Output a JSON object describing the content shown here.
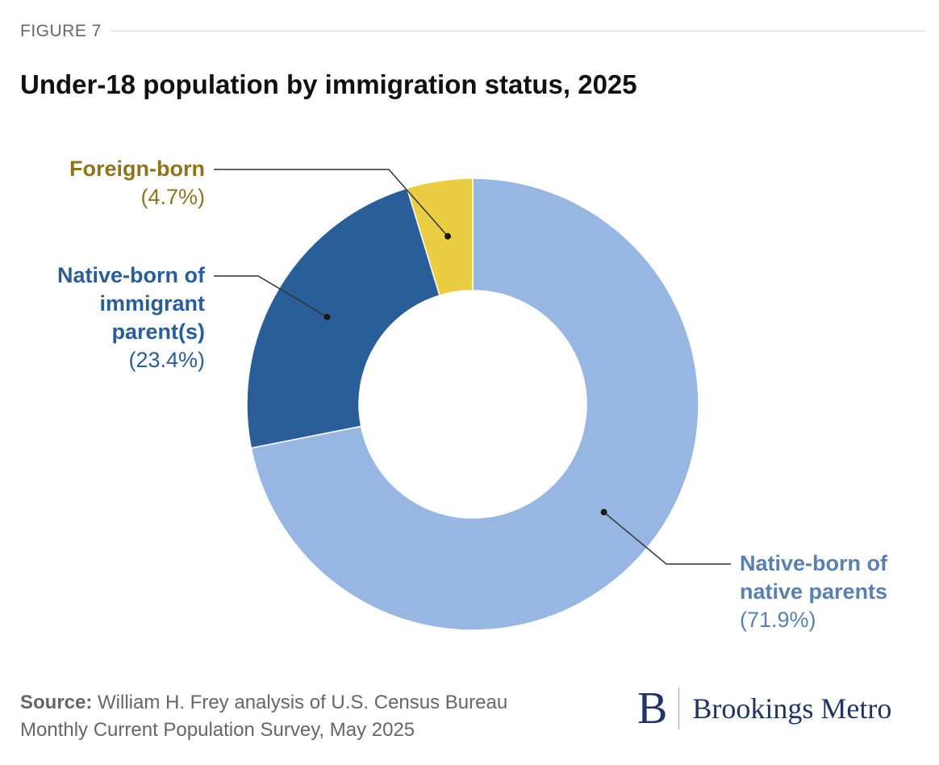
{
  "figure_label": "FIGURE 7",
  "chart_data": {
    "type": "pie",
    "title": "Under-18 population by immigration status, 2025",
    "slices": [
      {
        "name": "Native-born of native parents",
        "name_lines": [
          "Native-born of",
          "native parents"
        ],
        "value": 71.9,
        "value_label": "(71.9%)",
        "color": "#97b7e2",
        "label_color": "#5a80ad"
      },
      {
        "name": "Native-born of immigrant parent(s)",
        "name_lines": [
          "Native-born of",
          "immigrant",
          "parent(s)"
        ],
        "value": 23.4,
        "value_label": "(23.4%)",
        "color": "#2a5e98",
        "label_color": "#2a5e98"
      },
      {
        "name": "Foreign-born",
        "name_lines": [
          "Foreign-born"
        ],
        "value": 4.7,
        "value_label": "(4.7%)",
        "color": "#ebcd44",
        "label_color": "#8c7521"
      }
    ],
    "donut": true,
    "leader_color": "#333333"
  },
  "source": {
    "key": "Source:",
    "text_line1": " William H. Frey analysis of U.S. Census Bureau",
    "text_line2": "Monthly Current Population Survey, May 2025"
  },
  "logo": {
    "mark": "B",
    "text": "Brookings Metro",
    "color": "#1f3566"
  }
}
